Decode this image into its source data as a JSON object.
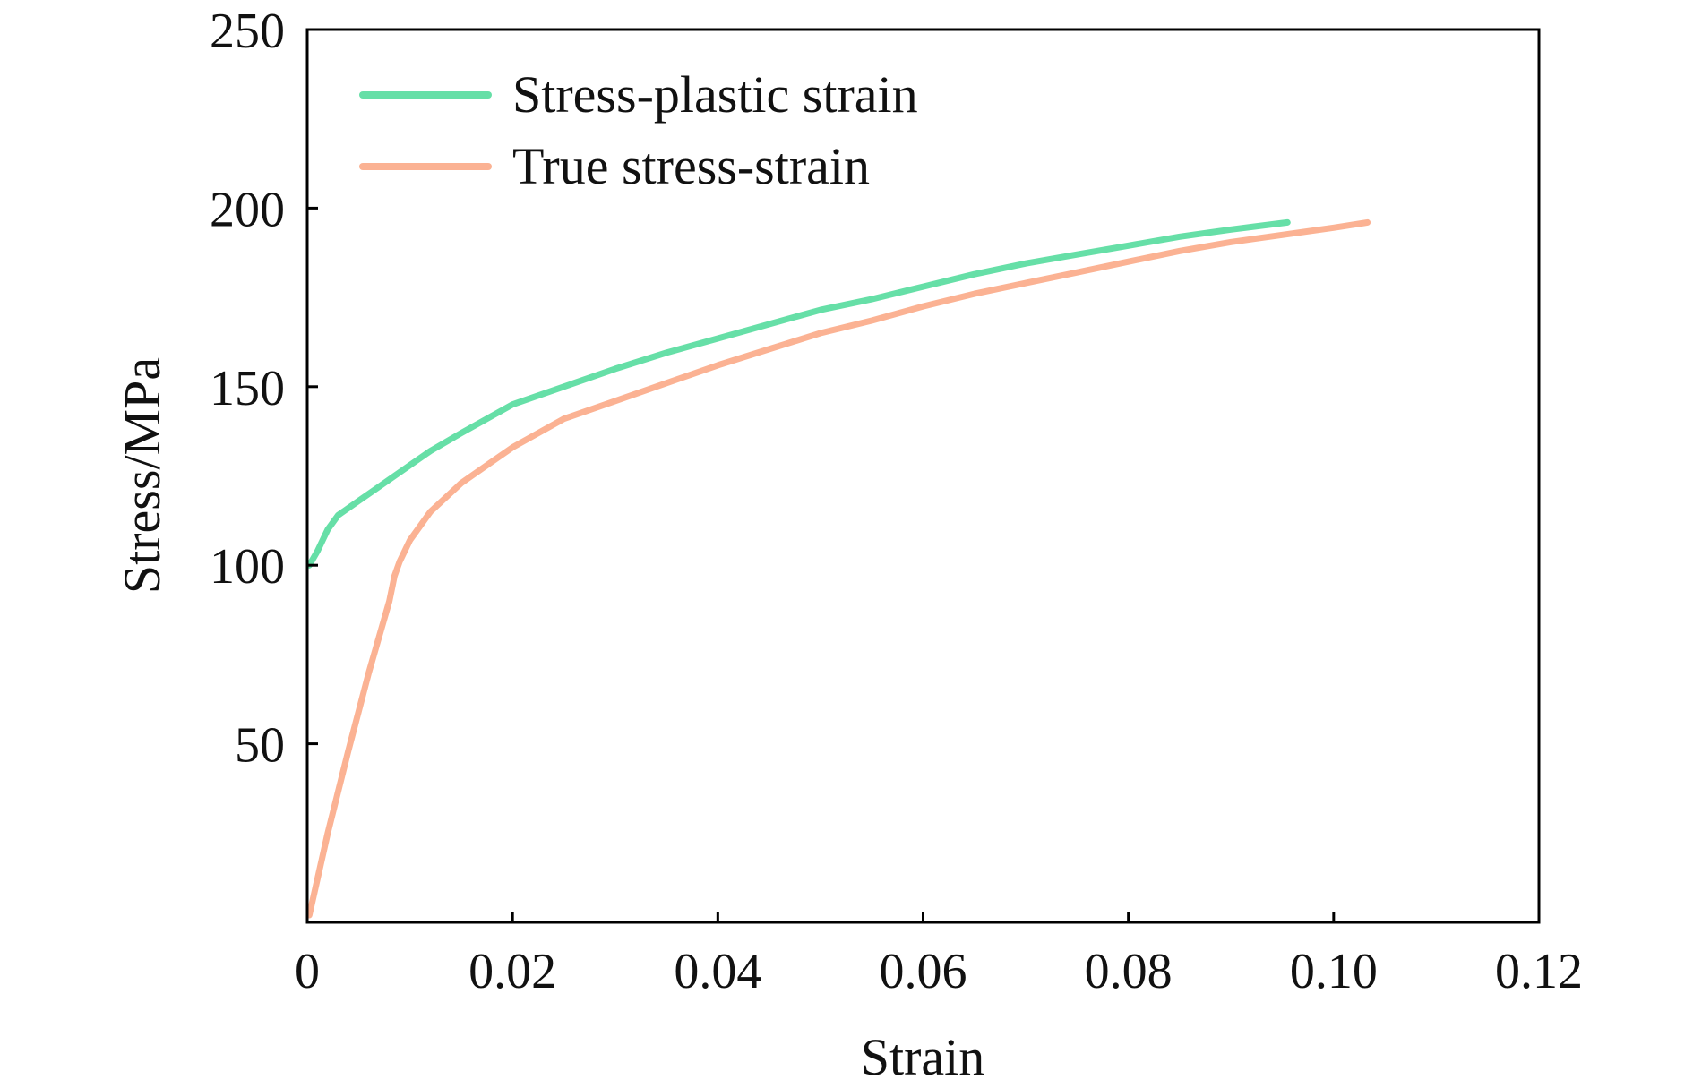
{
  "chart_data": {
    "type": "line",
    "title": "",
    "xlabel": "Strain",
    "ylabel": "Stress/MPa",
    "xlim": [
      0,
      0.12
    ],
    "ylim": [
      0,
      250
    ],
    "x_ticks": [
      {
        "value": 0,
        "label": "0"
      },
      {
        "value": 0.02,
        "label": "0.02"
      },
      {
        "value": 0.04,
        "label": "0.04"
      },
      {
        "value": 0.06,
        "label": "0.06"
      },
      {
        "value": 0.08,
        "label": "0.08"
      },
      {
        "value": 0.1,
        "label": "0.10"
      },
      {
        "value": 0.12,
        "label": "0.12"
      }
    ],
    "y_ticks": [
      {
        "value": 50,
        "label": "50"
      },
      {
        "value": 100,
        "label": "100"
      },
      {
        "value": 150,
        "label": "150"
      },
      {
        "value": 200,
        "label": "200"
      },
      {
        "value": 250,
        "label": "250"
      }
    ],
    "grid": false,
    "legend_position": "top-left",
    "series": [
      {
        "name": "Stress-plastic strain",
        "color": "#66dfa7",
        "points": [
          [
            0.0002,
            100
          ],
          [
            0.001,
            104
          ],
          [
            0.002,
            110
          ],
          [
            0.003,
            114
          ],
          [
            0.005,
            118
          ],
          [
            0.007,
            122
          ],
          [
            0.01,
            128
          ],
          [
            0.012,
            132
          ],
          [
            0.015,
            137
          ],
          [
            0.02,
            145
          ],
          [
            0.025,
            150
          ],
          [
            0.03,
            155
          ],
          [
            0.035,
            159.5
          ],
          [
            0.04,
            163.5
          ],
          [
            0.045,
            167.5
          ],
          [
            0.05,
            171.5
          ],
          [
            0.055,
            174.5
          ],
          [
            0.06,
            178
          ],
          [
            0.065,
            181.5
          ],
          [
            0.07,
            184.5
          ],
          [
            0.075,
            187
          ],
          [
            0.08,
            189.5
          ],
          [
            0.085,
            192
          ],
          [
            0.09,
            194
          ],
          [
            0.0955,
            196
          ]
        ]
      },
      {
        "name": "True stress-strain",
        "color": "#fbb293",
        "points": [
          [
            0.0002,
            2
          ],
          [
            0.002,
            25
          ],
          [
            0.004,
            48
          ],
          [
            0.006,
            70
          ],
          [
            0.008,
            90
          ],
          [
            0.0085,
            97
          ],
          [
            0.009,
            101
          ],
          [
            0.01,
            107
          ],
          [
            0.012,
            115
          ],
          [
            0.015,
            123
          ],
          [
            0.018,
            129
          ],
          [
            0.02,
            133
          ],
          [
            0.025,
            141
          ],
          [
            0.03,
            146
          ],
          [
            0.035,
            151
          ],
          [
            0.04,
            156
          ],
          [
            0.045,
            160.5
          ],
          [
            0.05,
            165
          ],
          [
            0.055,
            168.5
          ],
          [
            0.06,
            172.5
          ],
          [
            0.065,
            176
          ],
          [
            0.07,
            179
          ],
          [
            0.075,
            182
          ],
          [
            0.08,
            185
          ],
          [
            0.085,
            188
          ],
          [
            0.09,
            190.5
          ],
          [
            0.095,
            192.5
          ],
          [
            0.1,
            194.5
          ],
          [
            0.1033,
            196
          ]
        ]
      }
    ]
  }
}
